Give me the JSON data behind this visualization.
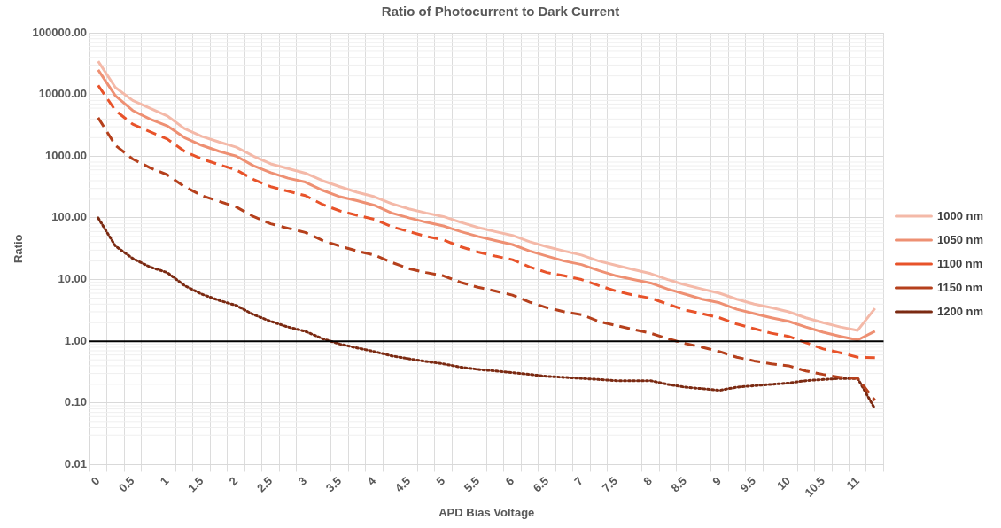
{
  "chart_data": {
    "type": "line",
    "title": "Ratio of Photocurrent to Dark Current",
    "xlabel": "APD Bias Voltage",
    "ylabel": "Ratio",
    "categories": [
      "0",
      null,
      "0.5",
      null,
      "1",
      null,
      "1.5",
      null,
      "2",
      null,
      "2.5",
      null,
      "3",
      null,
      "3.5",
      null,
      "4",
      null,
      "4.5",
      null,
      "5",
      null,
      "5.5",
      null,
      "6",
      null,
      "6.5",
      null,
      "7",
      null,
      "7.5",
      null,
      "8",
      null,
      "8.5",
      null,
      "9",
      null,
      "9.5",
      null,
      "10",
      null,
      "10.5",
      null,
      "11",
      null
    ],
    "series": [
      {
        "name": "1000 nm",
        "color": "#f4b9a8",
        "line_style": "solid",
        "values": [
          34600,
          13000,
          8000,
          6000,
          4500,
          2800,
          2100,
          1700,
          1400,
          1000,
          750,
          630,
          530,
          400,
          320,
          260,
          220,
          170,
          140,
          120,
          105,
          85,
          70,
          60,
          52,
          41,
          34,
          29,
          25,
          20,
          17,
          14.5,
          12.5,
          10,
          8.2,
          7,
          6,
          4.8,
          4,
          3.5,
          3,
          2.4,
          2,
          1.7,
          1.5,
          3.4
        ]
      },
      {
        "name": "1050 nm",
        "color": "#ee9073",
        "line_style": "solid",
        "values": [
          25000,
          9500,
          5500,
          4000,
          3100,
          2000,
          1500,
          1200,
          1000,
          700,
          540,
          440,
          380,
          280,
          220,
          190,
          160,
          120,
          100,
          85,
          74,
          60,
          50,
          43,
          37,
          29,
          24,
          20,
          17.5,
          14,
          11.5,
          10,
          8.8,
          7,
          5.8,
          4.8,
          4.2,
          3.3,
          2.8,
          2.4,
          2.1,
          1.7,
          1.4,
          1.2,
          1.05,
          1.45
        ]
      },
      {
        "name": "1100 nm",
        "color": "#e8532a",
        "line_style": "dashed",
        "values": [
          14000,
          5500,
          3300,
          2500,
          1900,
          1200,
          900,
          730,
          600,
          420,
          320,
          270,
          230,
          165,
          130,
          110,
          95,
          72,
          60,
          50,
          44,
          34,
          28,
          24,
          21,
          16,
          13,
          11.5,
          10,
          8,
          6.5,
          5.6,
          5,
          4,
          3.2,
          2.8,
          2.4,
          1.9,
          1.6,
          1.35,
          1.2,
          0.95,
          0.75,
          0.65,
          0.55,
          0.54
        ]
      },
      {
        "name": "1150 nm",
        "color": "#b5401c",
        "line_style": "dashed",
        "values": [
          4200,
          1500,
          900,
          650,
          500,
          320,
          230,
          185,
          150,
          105,
          80,
          68,
          58,
          43,
          35,
          29,
          25,
          19,
          15,
          13,
          11.5,
          9,
          7.5,
          6.5,
          5.6,
          4.3,
          3.5,
          3,
          2.7,
          2.1,
          1.8,
          1.55,
          1.35,
          1.1,
          0.92,
          0.8,
          0.68,
          0.55,
          0.48,
          0.43,
          0.4,
          0.33,
          0.29,
          0.26,
          0.25,
          0.11
        ]
      },
      {
        "name": "1200 nm",
        "color": "#7b2a12",
        "line_style": "dotted",
        "values": [
          100,
          35,
          22,
          16,
          13,
          8,
          5.8,
          4.6,
          3.8,
          2.7,
          2.1,
          1.7,
          1.45,
          1.1,
          0.9,
          0.78,
          0.68,
          0.58,
          0.52,
          0.47,
          0.43,
          0.38,
          0.35,
          0.33,
          0.31,
          0.29,
          0.27,
          0.26,
          0.25,
          0.24,
          0.23,
          0.23,
          0.23,
          0.2,
          0.18,
          0.17,
          0.16,
          0.18,
          0.19,
          0.2,
          0.21,
          0.23,
          0.24,
          0.25,
          0.25,
          0.08
        ]
      }
    ],
    "log": "y",
    "ylim": [
      0.01,
      100000
    ],
    "yticks": [
      {
        "value": 0.01,
        "label": "0.01"
      },
      {
        "value": 0.1,
        "label": "0.10"
      },
      {
        "value": 1,
        "label": "1.00"
      },
      {
        "value": 10,
        "label": "10.00"
      },
      {
        "value": 100,
        "label": "100.00"
      },
      {
        "value": 1000,
        "label": "1000.00"
      },
      {
        "value": 10000,
        "label": "10000.00"
      },
      {
        "value": 100000,
        "label": "100000.00"
      }
    ],
    "ref_lines": [
      {
        "axis": "y",
        "value": 1,
        "color": "#000000"
      }
    ],
    "grid": true,
    "legend": "right",
    "marker": "none"
  }
}
